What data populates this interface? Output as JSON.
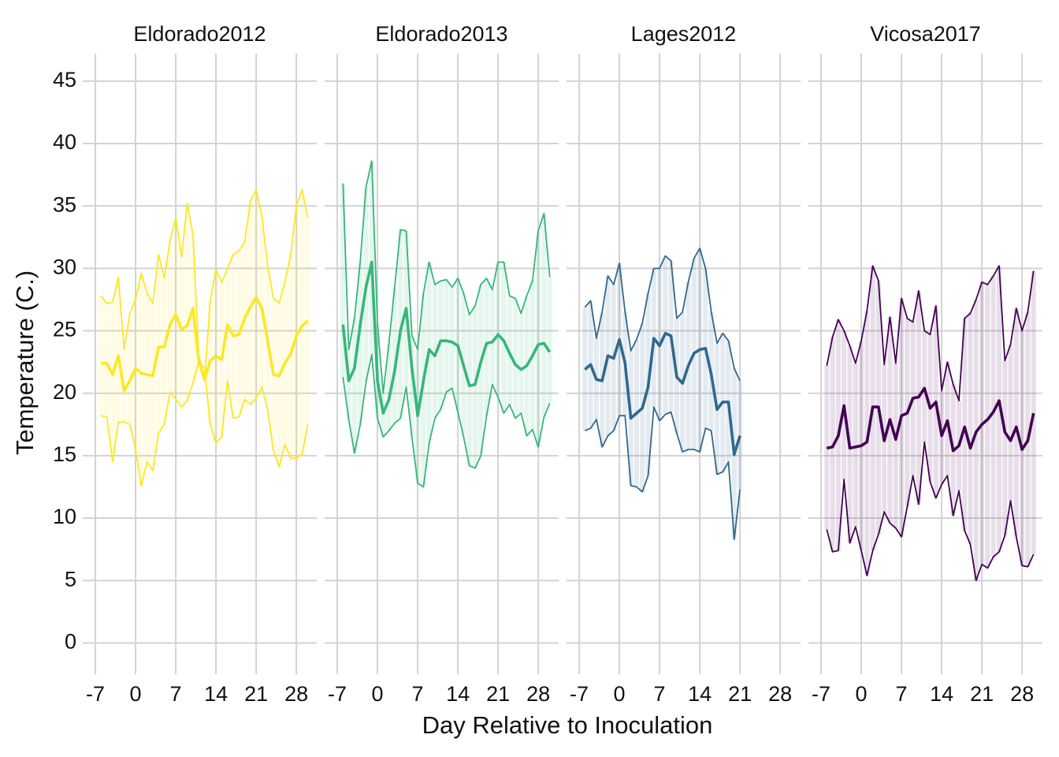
{
  "xlabel": "Day Relative to Inoculation",
  "ylabel": "Temperature (C.)",
  "chart_data": [
    {
      "type": "line",
      "title": "Eldorado2012",
      "color": "#fde725",
      "x": [
        -6,
        -5,
        -4,
        -3,
        -2,
        -1,
        0,
        1,
        2,
        3,
        4,
        5,
        6,
        7,
        8,
        9,
        10,
        11,
        12,
        13,
        14,
        15,
        16,
        17,
        18,
        19,
        20,
        21,
        22,
        23,
        24,
        25,
        26,
        27,
        28,
        29,
        30
      ],
      "series": [
        {
          "values": [
            27.8,
            27.2,
            27.3,
            29.3,
            23.5,
            26.4,
            27.5,
            29.6,
            28.0,
            27.2,
            31.1,
            29.2,
            32.2,
            34.0,
            30.9,
            35.2,
            32.7,
            23.1,
            21.0,
            27.4,
            29.9,
            28.9,
            30.0,
            31.1,
            31.4,
            32.1,
            35.4,
            36.3,
            34.2,
            30.2,
            27.6,
            27.2,
            28.9,
            31.0,
            35.0,
            36.3,
            34.0
          ]
        },
        {
          "values": [
            22.4,
            22.4,
            21.5,
            23.0,
            20.2,
            21.0,
            22.0,
            21.6,
            21.5,
            21.4,
            23.7,
            23.7,
            25.5,
            26.3,
            25.1,
            25.4,
            26.8,
            22.6,
            21.1,
            22.6,
            23.0,
            22.7,
            25.5,
            24.6,
            24.7,
            26.0,
            26.9,
            27.7,
            26.8,
            24.2,
            21.5,
            21.4,
            22.4,
            23.1,
            24.6,
            25.4,
            25.8
          ]
        },
        {
          "values": [
            18.2,
            18.1,
            14.5,
            17.7,
            17.7,
            17.5,
            15.5,
            12.6,
            14.5,
            13.8,
            16.8,
            17.5,
            20.1,
            19.5,
            18.9,
            19.4,
            20.8,
            22.6,
            22.0,
            17.5,
            16.0,
            16.5,
            21.0,
            18.0,
            18.1,
            19.5,
            19.1,
            19.6,
            20.5,
            18.7,
            15.4,
            14.1,
            15.9,
            14.8,
            14.8,
            15.1,
            17.5
          ]
        }
      ],
      "xlim": [
        -9.2,
        31.55
      ],
      "xticks": [
        -7,
        0,
        7,
        14,
        21,
        28
      ],
      "ylim": [
        -2.5,
        47.2
      ],
      "yticks": [
        0,
        5,
        10,
        15,
        20,
        25,
        30,
        35,
        40,
        45
      ],
      "grid": true
    },
    {
      "type": "line",
      "title": "Eldorado2013",
      "color": "#35b779",
      "x": [
        -6,
        -5,
        -4,
        -3,
        -2,
        -1,
        0,
        1,
        2,
        3,
        4,
        5,
        6,
        7,
        8,
        9,
        10,
        11,
        12,
        13,
        14,
        15,
        16,
        17,
        18,
        19,
        20,
        21,
        22,
        23,
        24,
        25,
        26,
        27,
        28,
        29,
        30
      ],
      "series": [
        {
          "values": [
            36.8,
            23.5,
            26.0,
            30.5,
            36.5,
            38.6,
            25.5,
            20.0,
            24.0,
            28.5,
            33.1,
            33.0,
            24.6,
            23.5,
            28.0,
            30.5,
            28.7,
            29.0,
            29.1,
            28.5,
            29.2,
            28.0,
            26.3,
            27.0,
            28.7,
            29.2,
            28.3,
            30.5,
            30.5,
            27.8,
            27.6,
            26.4,
            27.8,
            29.0,
            33.0,
            34.4,
            29.3
          ]
        },
        {
          "values": [
            25.5,
            21.0,
            22.0,
            25.5,
            28.5,
            30.5,
            21.0,
            18.4,
            19.5,
            21.8,
            25.0,
            26.8,
            22.0,
            18.2,
            21.0,
            23.5,
            23.0,
            24.2,
            24.2,
            24.1,
            23.8,
            22.2,
            20.6,
            20.7,
            22.5,
            24.0,
            24.1,
            24.7,
            24.2,
            23.2,
            22.3,
            21.9,
            22.2,
            23.0,
            23.9,
            24.0,
            23.3
          ]
        },
        {
          "values": [
            21.3,
            17.9,
            15.2,
            17.5,
            20.9,
            23.1,
            18.0,
            16.5,
            17.0,
            17.6,
            18.0,
            20.5,
            16.5,
            12.8,
            12.5,
            16.0,
            18.0,
            18.7,
            20.1,
            20.4,
            18.5,
            16.5,
            14.2,
            14.0,
            15.0,
            18.2,
            20.7,
            19.7,
            18.4,
            19.1,
            18.0,
            18.4,
            16.6,
            17.1,
            15.7,
            18.1,
            19.2
          ]
        }
      ],
      "xlim": [
        -9.2,
        31.55
      ],
      "xticks": [
        -7,
        0,
        7,
        14,
        21,
        28
      ],
      "ylim": [
        -2.5,
        47.2
      ],
      "yticks": [
        0,
        5,
        10,
        15,
        20,
        25,
        30,
        35,
        40,
        45
      ],
      "grid": true
    },
    {
      "type": "line",
      "title": "Lages2012",
      "color": "#31688e",
      "x": [
        -6,
        -5,
        -4,
        -3,
        -2,
        -1,
        0,
        1,
        2,
        3,
        4,
        5,
        6,
        7,
        8,
        9,
        10,
        11,
        12,
        13,
        14,
        15,
        16,
        17,
        18,
        19,
        20,
        21
      ],
      "series": [
        {
          "values": [
            26.9,
            27.4,
            24.4,
            26.5,
            29.4,
            28.7,
            30.4,
            26.5,
            23.4,
            24.3,
            25.6,
            28.0,
            30.0,
            30.0,
            31.0,
            30.6,
            26.0,
            26.5,
            28.9,
            30.8,
            31.6,
            30.0,
            26.5,
            24.0,
            24.8,
            24.2,
            22.0,
            21.0
          ]
        },
        {
          "values": [
            21.9,
            22.3,
            21.1,
            21.0,
            23.0,
            22.8,
            24.3,
            22.4,
            18.0,
            18.4,
            18.8,
            20.5,
            24.4,
            23.8,
            24.8,
            24.6,
            21.3,
            20.8,
            22.2,
            23.2,
            23.5,
            23.6,
            21.5,
            18.7,
            19.3,
            19.3,
            15.1,
            16.6
          ]
        },
        {
          "values": [
            17.0,
            17.2,
            17.9,
            15.7,
            16.6,
            17.0,
            18.2,
            18.2,
            12.6,
            12.5,
            12.1,
            13.4,
            18.9,
            17.8,
            18.3,
            18.5,
            16.8,
            15.3,
            15.5,
            15.5,
            15.3,
            17.2,
            17.0,
            13.5,
            13.7,
            14.5,
            8.3,
            12.3
          ]
        }
      ],
      "xlim": [
        -9.2,
        31.55
      ],
      "xticks": [
        -7,
        0,
        7,
        14,
        21,
        28
      ],
      "ylim": [
        -2.5,
        47.2
      ],
      "yticks": [
        0,
        5,
        10,
        15,
        20,
        25,
        30,
        35,
        40,
        45
      ],
      "grid": true
    },
    {
      "type": "line",
      "title": "Vicosa2017",
      "color": "#440154",
      "x": [
        -6,
        -5,
        -4,
        -3,
        -2,
        -1,
        0,
        1,
        2,
        3,
        4,
        5,
        6,
        7,
        8,
        9,
        10,
        11,
        12,
        13,
        14,
        15,
        16,
        17,
        18,
        19,
        20,
        21,
        22,
        23,
        24,
        25,
        26,
        27,
        28,
        29,
        30
      ],
      "series": [
        {
          "values": [
            22.2,
            24.5,
            25.9,
            25.0,
            23.8,
            22.4,
            24.2,
            26.6,
            30.2,
            29.0,
            22.3,
            26.1,
            22.4,
            27.6,
            26.0,
            25.7,
            28.2,
            25.0,
            24.7,
            27.0,
            20.2,
            22.5,
            20.7,
            19.4,
            26.0,
            26.4,
            27.5,
            28.9,
            28.7,
            29.4,
            30.2,
            22.6,
            23.9,
            26.8,
            25.0,
            26.5,
            29.8
          ]
        },
        {
          "values": [
            15.6,
            15.7,
            16.6,
            19.0,
            15.6,
            15.7,
            15.8,
            16.1,
            18.9,
            18.9,
            16.2,
            17.9,
            16.3,
            18.2,
            18.4,
            19.6,
            19.7,
            20.4,
            18.8,
            19.3,
            16.6,
            17.8,
            15.4,
            15.8,
            17.3,
            15.6,
            16.9,
            17.5,
            17.9,
            18.5,
            19.4,
            16.9,
            16.2,
            17.3,
            15.5,
            16.2,
            18.4
          ]
        },
        {
          "values": [
            9.1,
            7.3,
            7.4,
            13.1,
            8.0,
            9.3,
            7.4,
            5.4,
            7.4,
            8.7,
            10.5,
            9.6,
            9.2,
            8.5,
            10.9,
            13.4,
            11.1,
            16.1,
            12.9,
            11.6,
            12.7,
            13.4,
            10.2,
            12.2,
            9.0,
            7.9,
            5.0,
            6.3,
            6.0,
            6.9,
            7.3,
            8.6,
            11.4,
            8.5,
            6.2,
            6.1,
            7.1
          ]
        }
      ],
      "xlim": [
        -9.2,
        31.55
      ],
      "xticks": [
        -7,
        0,
        7,
        14,
        21,
        28
      ],
      "ylim": [
        -2.5,
        47.2
      ],
      "yticks": [
        0,
        5,
        10,
        15,
        20,
        25,
        30,
        35,
        40,
        45
      ],
      "grid": true
    }
  ]
}
